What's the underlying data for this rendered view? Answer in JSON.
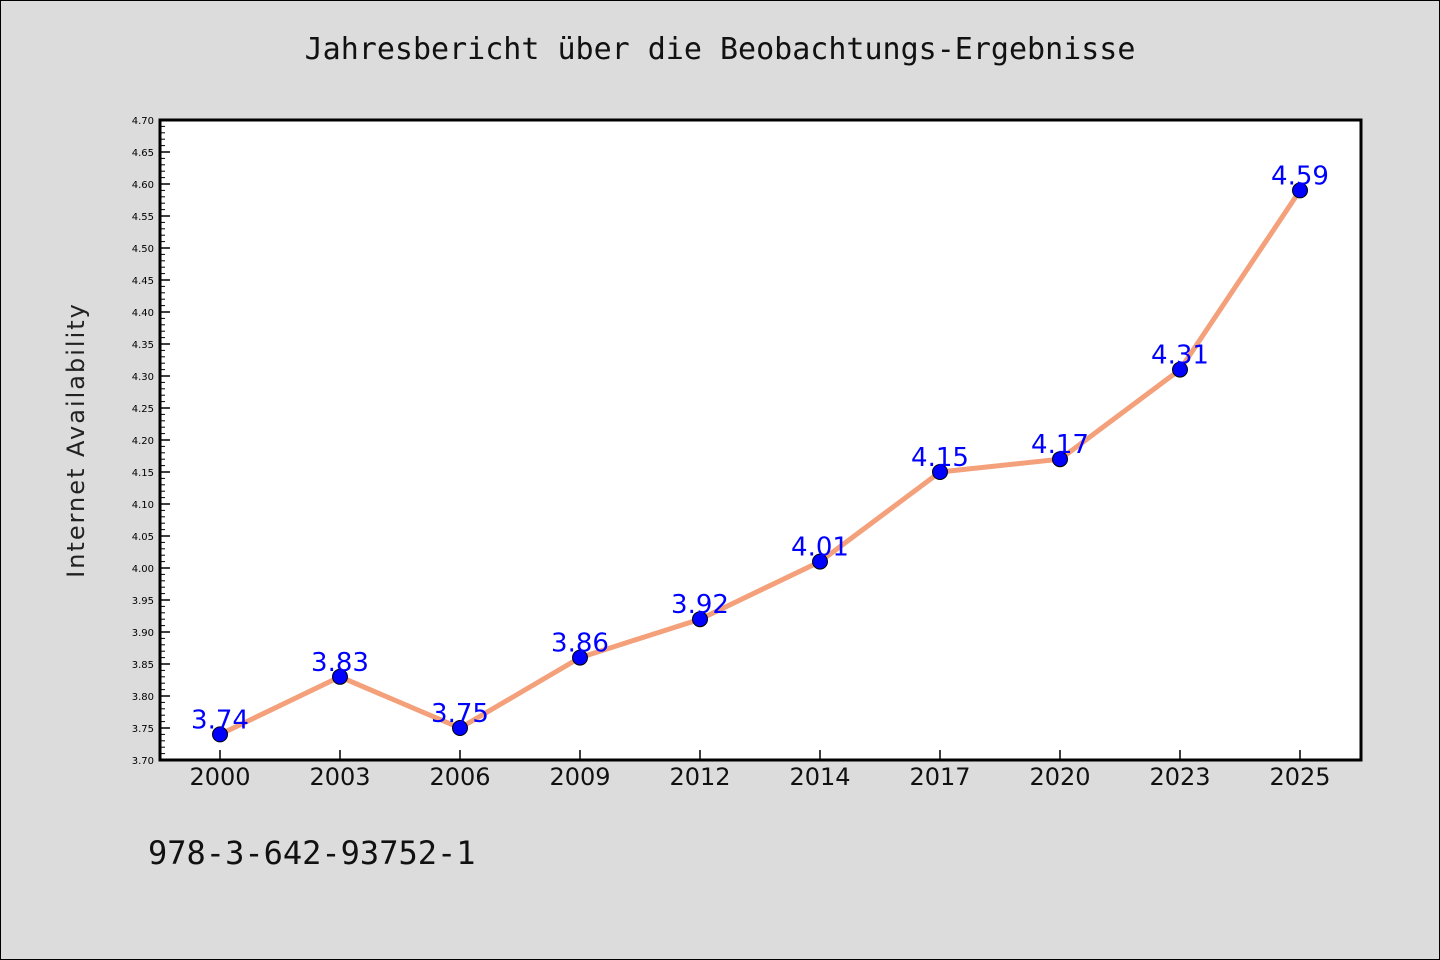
{
  "chart_data": {
    "type": "line",
    "title": "Jahresbericht über die Beobachtungs-Ergebnisse",
    "xlabel": "",
    "ylabel": "Internet Availability",
    "categories": [
      "2000",
      "2003",
      "2006",
      "2009",
      "2012",
      "2014",
      "2017",
      "2020",
      "2023",
      "2025"
    ],
    "series": [
      {
        "values": [
          3.74,
          3.83,
          3.75,
          3.86,
          3.92,
          4.01,
          4.15,
          4.17,
          4.31,
          4.59
        ],
        "line_color": "#f4a07a",
        "marker_color": "#0000ff"
      }
    ],
    "data_labels": [
      "3.74",
      "3.83",
      "3.75",
      "3.86",
      "3.92",
      "4.01",
      "4.15",
      "4.17",
      "4.31",
      "4.59"
    ],
    "ylim": [
      3.7,
      4.7
    ],
    "yticks": [
      "3.70",
      "3.75",
      "3.80",
      "3.85",
      "3.90",
      "3.95",
      "4.00",
      "4.05",
      "4.10",
      "4.15",
      "4.20",
      "4.25",
      "4.30",
      "4.35",
      "4.40",
      "4.45",
      "4.50",
      "4.55",
      "4.60",
      "4.65",
      "4.70"
    ],
    "grid": false,
    "legend": "none"
  },
  "footer": {
    "isbn": "978-3-642-93752-1"
  },
  "colors": {
    "background": "#dcdcdc",
    "plot_background": "#ffffff",
    "line": "#f4a07a",
    "marker": "#0000ff",
    "label": "#0000ff"
  }
}
